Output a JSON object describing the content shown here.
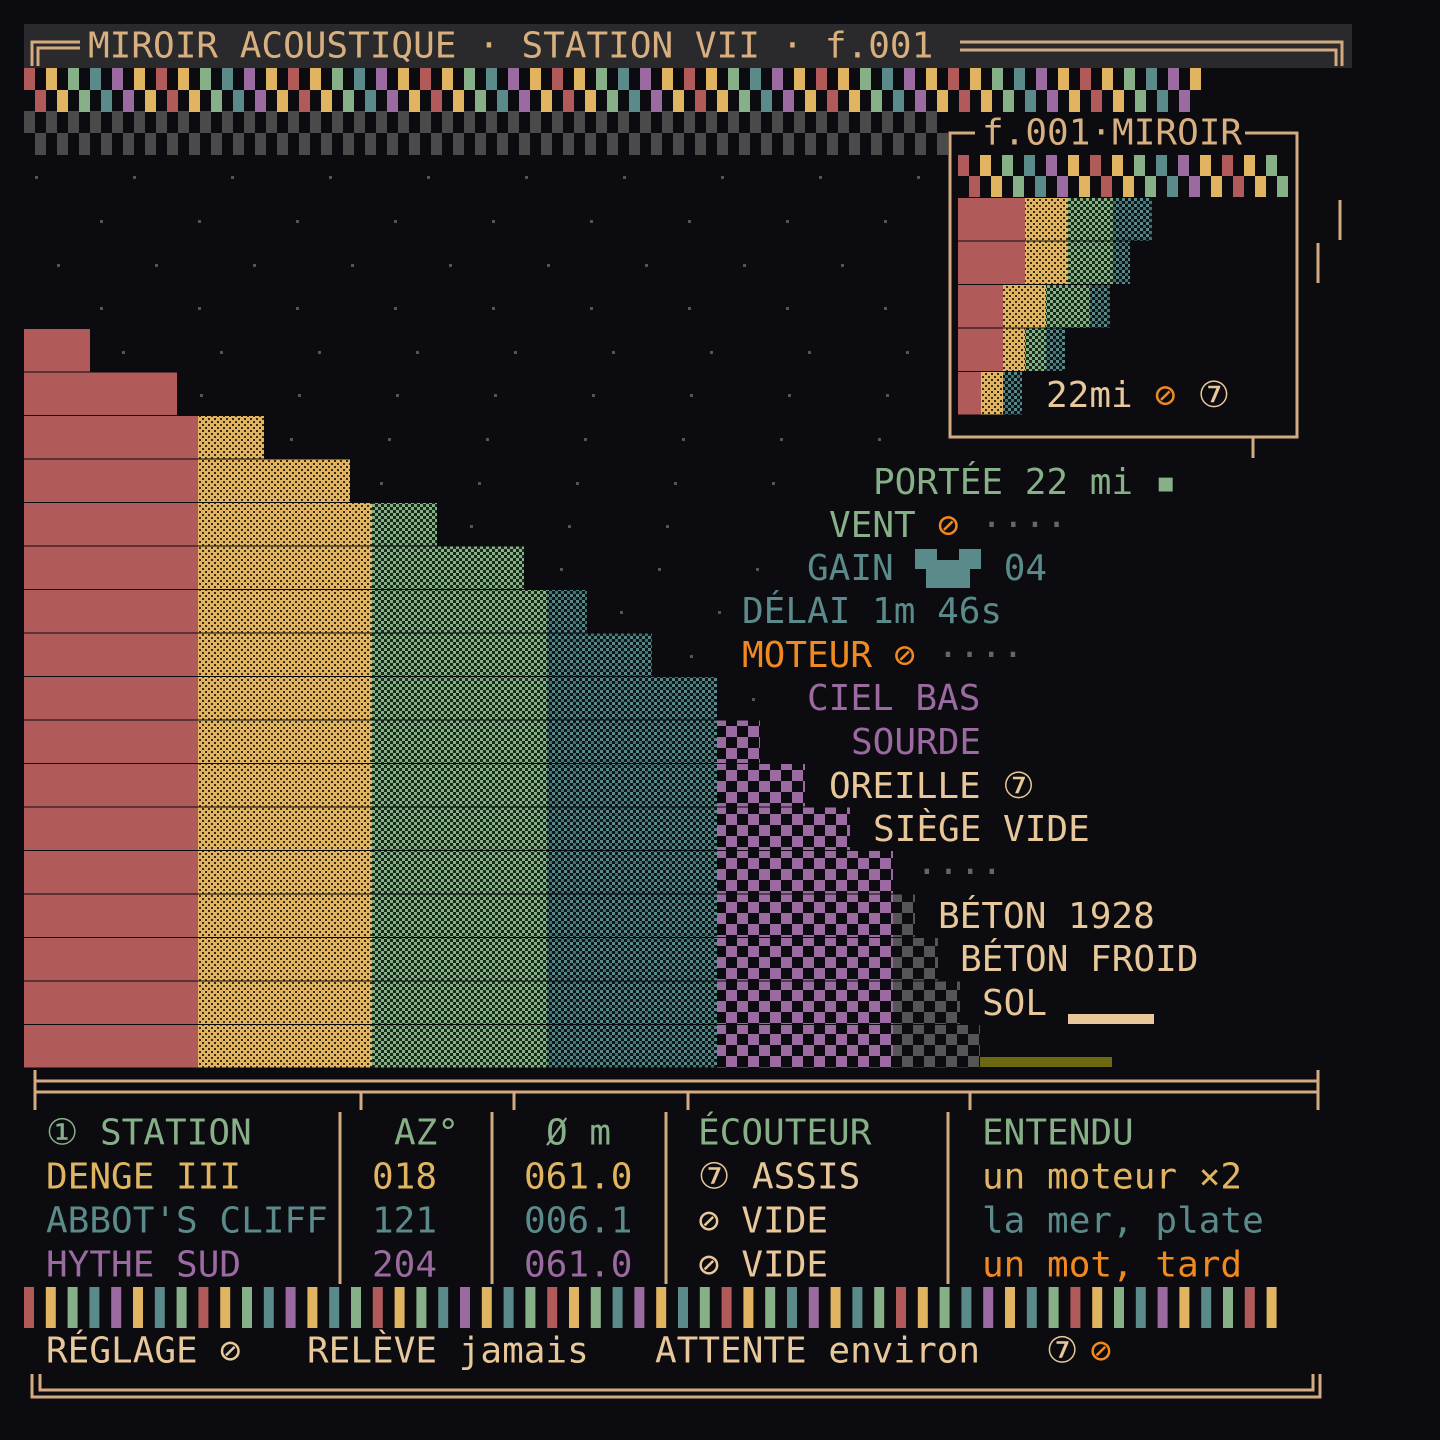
{
  "header": {
    "title": "MIROIR ACOUSTIQUE · STATION VII · f.001"
  },
  "inset": {
    "title": "f.001·MIROIR",
    "caption": [
      "22mi",
      "⊘",
      "⑦"
    ]
  },
  "side_labels": [
    [
      "PORTÉE 22 mi",
      "▪"
    ],
    [
      "VENT",
      "⊘",
      "····"
    ],
    [
      "GAIN",
      "04"
    ],
    [
      "DÉLAI 1m 46s"
    ],
    [
      "MOTEUR ⊘",
      "····"
    ],
    [
      "CIEL BAS"
    ],
    [
      "SOURDE"
    ],
    [
      "OREILLE",
      "⑦"
    ],
    [
      "SIÈGE VIDE"
    ],
    [
      "····"
    ],
    [
      "BÉTON 1928"
    ],
    [
      "BÉTON FROID"
    ],
    [
      "SOL"
    ]
  ],
  "table": {
    "headers": [
      "① STATION",
      "AZ°",
      "Ø m",
      "ÉCOUTEUR",
      "ENTENDU"
    ],
    "rows": [
      [
        "DENGE III",
        "018",
        "061.0",
        "⑦ ASSIS",
        "un moteur ×2"
      ],
      [
        "ABBOT'S CLIFF",
        "121",
        "006.1",
        "⊘ VIDE",
        "la mer, plate"
      ],
      [
        "HYTHE SUD",
        "204",
        "061.0",
        "⊘ VIDE",
        "un mot, tard"
      ]
    ]
  },
  "footer": [
    "RÉGLAGE ⊘",
    "RELÈVE jamais",
    "ATTENTE environ",
    "⑦",
    "⊘"
  ]
}
